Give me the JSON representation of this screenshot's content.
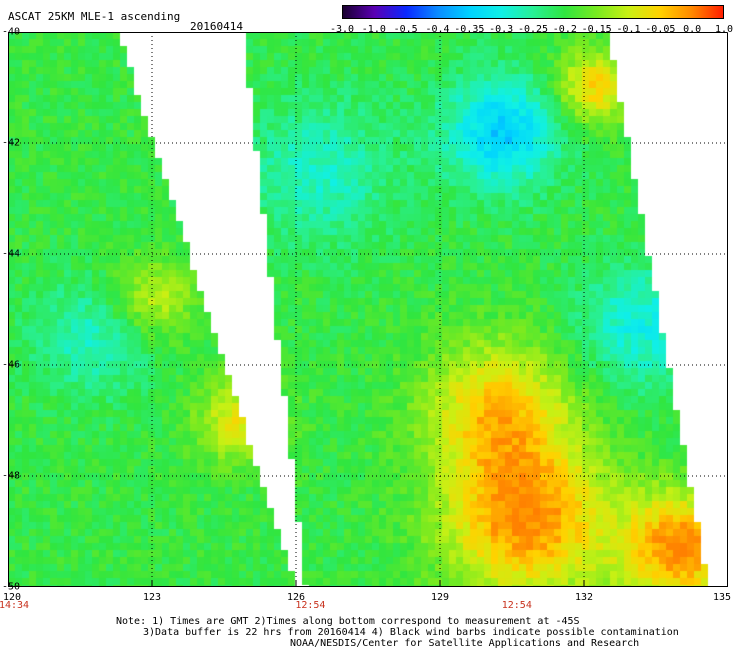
{
  "header": {
    "title": "ASCAT 25KM MLE-1 ascending",
    "date": "20160414"
  },
  "colorbar": {
    "labels": [
      "-3.0",
      "-1.0",
      "-0.5",
      "-0.4",
      "-0.35",
      "-0.3",
      "-0.25",
      "-0.2",
      "-0.15",
      "-0.1",
      "-0.05",
      "0.0",
      "1.0"
    ],
    "colors": [
      "#1a0030",
      "#5a00b4",
      "#0a28ff",
      "#0a8cff",
      "#00d2ff",
      "#10f0e6",
      "#28f096",
      "#30e640",
      "#78ea20",
      "#c8f014",
      "#ffd200",
      "#ff8a00",
      "#ff1e00"
    ]
  },
  "axes": {
    "lat_ticks": [
      "-40",
      "-42",
      "-44",
      "-46",
      "-48",
      "-50"
    ],
    "lon_ticks": [
      "120",
      "123",
      "126",
      "129",
      "132",
      "135"
    ],
    "lat_range": [
      -50,
      -40
    ],
    "lon_range": [
      120,
      135
    ]
  },
  "times": {
    "labels": [
      "14:34",
      "12:54",
      "12:54"
    ],
    "lons": [
      120,
      126.3,
      130.6
    ]
  },
  "notes": {
    "line1": "Note: 1) Times are GMT 2)Times along bottom correspond to measurement at -45S",
    "line2": "3)Data buffer is 22 hrs from 20160414 4) Black wind barbs indicate possible contamination",
    "line3": "NOAA/NESDIS/Center for Satellite Applications and Research"
  },
  "map": {
    "variable": "MLE-1",
    "swaths": [
      {
        "lon_west_at_top": 120.0,
        "lon_east_at_top": 122.3,
        "lon_east_at_bottom": 126.0
      },
      {
        "lon_west_at_top": 124.9,
        "lon_west_at_bottom": 126.2,
        "lon_east_at_top": 132.5,
        "lon_east_at_bottom": 134.6
      }
    ],
    "regions": [
      {
        "lat": -41.8,
        "lon": 130.3,
        "value": -0.35,
        "radius": 1.2
      },
      {
        "lat": -45.3,
        "lon": 133.2,
        "value": -0.3,
        "radius": 1.3
      },
      {
        "lat": -42.5,
        "lon": 126.5,
        "value": -0.28,
        "radius": 1.5
      },
      {
        "lat": -45.5,
        "lon": 121.8,
        "value": -0.28,
        "radius": 1.2
      },
      {
        "lat": -44.8,
        "lon": 123.0,
        "value": -0.1,
        "radius": 0.9
      },
      {
        "lat": -46.8,
        "lon": 130.2,
        "value": -0.05,
        "radius": 1.5
      },
      {
        "lat": -48.8,
        "lon": 130.8,
        "value": 0.0,
        "radius": 1.7
      },
      {
        "lat": -49.3,
        "lon": 134.0,
        "value": 0.0,
        "radius": 1.2
      },
      {
        "lat": -41.0,
        "lon": 132.2,
        "value": -0.05,
        "radius": 0.8
      },
      {
        "lat": -47.0,
        "lon": 124.8,
        "value": -0.08,
        "radius": 0.9
      }
    ]
  }
}
